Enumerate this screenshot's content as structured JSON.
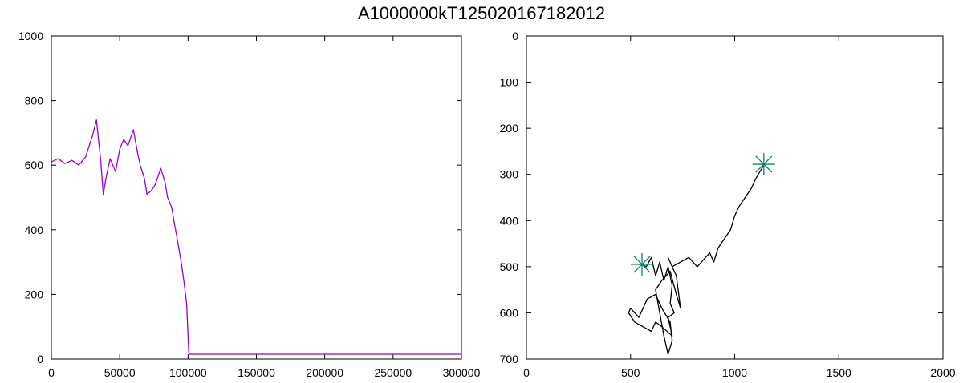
{
  "page": {
    "title": "A1000000kT125020167182012"
  },
  "chart_data": [
    {
      "type": "line",
      "title": "",
      "xlabel": "",
      "ylabel": "",
      "xlim": [
        0,
        300000
      ],
      "ylim": [
        0,
        1000
      ],
      "x_ticks": [
        0,
        50000,
        100000,
        150000,
        200000,
        250000,
        300000
      ],
      "x_tick_labels": [
        "0",
        "50000",
        "100000",
        "150000",
        "200000",
        "250000",
        "300000"
      ],
      "y_ticks": [
        0,
        200,
        400,
        600,
        800,
        1000
      ],
      "y_tick_labels": [
        "0",
        "200",
        "400",
        "600",
        "800",
        "1000"
      ],
      "grid": false,
      "series": [
        {
          "color": "#9400d3",
          "x": [
            0,
            5000,
            10000,
            15000,
            20000,
            25000,
            30000,
            33000,
            36000,
            38000,
            40000,
            43000,
            47000,
            50000,
            53000,
            56000,
            60000,
            63000,
            65000,
            68000,
            70000,
            73000,
            76000,
            80000,
            83000,
            85000,
            88000,
            90000,
            93000,
            95000,
            97000,
            99000,
            100500,
            101000,
            103000,
            150000,
            200000,
            250000,
            300000
          ],
          "y": [
            610,
            620,
            605,
            615,
            600,
            625,
            690,
            740,
            620,
            510,
            560,
            620,
            580,
            650,
            680,
            660,
            710,
            640,
            600,
            560,
            510,
            520,
            540,
            590,
            550,
            500,
            470,
            420,
            350,
            300,
            240,
            170,
            20,
            15,
            15,
            15,
            15,
            15,
            15
          ]
        }
      ]
    },
    {
      "type": "line",
      "title": "",
      "xlabel": "",
      "ylabel": "",
      "xlim": [
        0,
        2000
      ],
      "ylim": [
        700,
        0
      ],
      "y_inverted": true,
      "x_ticks": [
        0,
        500,
        1000,
        1500,
        2000
      ],
      "x_tick_labels": [
        "0",
        "500",
        "1000",
        "1500",
        "2000"
      ],
      "y_ticks": [
        0,
        100,
        200,
        300,
        400,
        500,
        600,
        700
      ],
      "y_tick_labels": [
        "0",
        "100",
        "200",
        "300",
        "400",
        "500",
        "600",
        "700"
      ],
      "grid": false,
      "series": [
        {
          "color": "#000000",
          "x": [
            555,
            575,
            600,
            620,
            640,
            660,
            680,
            700,
            690,
            710,
            680,
            700,
            650,
            620,
            600,
            560,
            520,
            490,
            500,
            540,
            580,
            620,
            650,
            690,
            700,
            680,
            660,
            640,
            620,
            650,
            690,
            720,
            740,
            720,
            700,
            680,
            700,
            740,
            780,
            820,
            860,
            880,
            900,
            920,
            950,
            980,
            1000,
            1020,
            1050,
            1080,
            1100,
            1120,
            1140
          ],
          "y": [
            495,
            500,
            480,
            520,
            490,
            530,
            500,
            540,
            580,
            600,
            610,
            650,
            630,
            620,
            640,
            630,
            620,
            600,
            590,
            610,
            570,
            560,
            590,
            620,
            660,
            690,
            650,
            600,
            550,
            530,
            510,
            560,
            590,
            520,
            500,
            480,
            500,
            490,
            480,
            500,
            480,
            470,
            490,
            460,
            440,
            420,
            390,
            370,
            350,
            330,
            310,
            295,
            280
          ]
        }
      ],
      "markers": [
        {
          "x": 555,
          "y": 495,
          "symbol": "asterisk",
          "color": "#00896e"
        },
        {
          "x": 1140,
          "y": 278,
          "symbol": "asterisk",
          "color": "#00896e"
        }
      ]
    }
  ]
}
